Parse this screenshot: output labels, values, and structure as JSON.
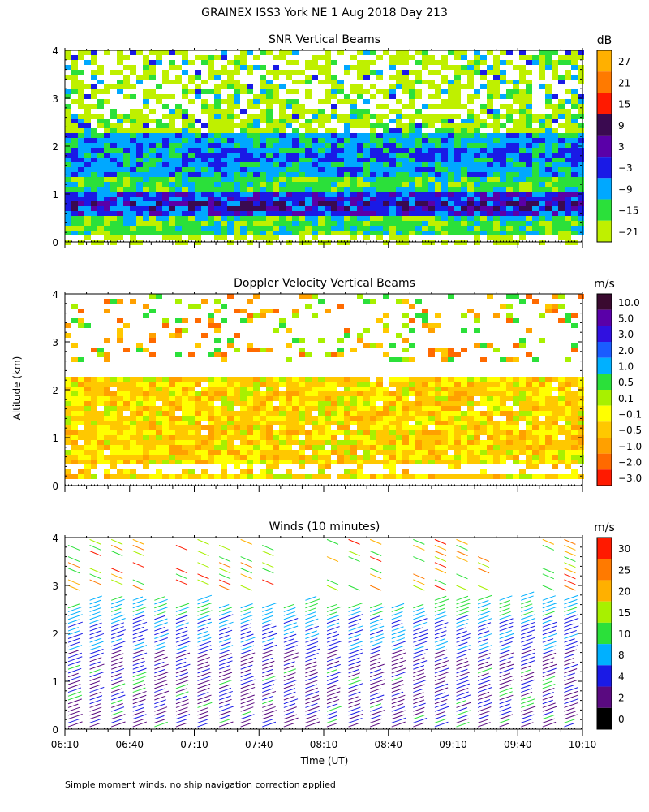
{
  "figure": {
    "title": "GRAINEX ISS3 York NE   1 Aug 2018 Day 213",
    "ylabel": "Altitude (km)",
    "xlabel": "Time (UT)",
    "footnote": "Simple moment winds, no ship navigation correction applied"
  },
  "chart_data": [
    {
      "type": "heatmap",
      "title": "SNR Vertical Beams",
      "units": "dB",
      "xlim": [
        "06:10",
        "10:10"
      ],
      "ylim": [
        0,
        4
      ],
      "yticks": [
        "0",
        "1",
        "2",
        "3",
        "4"
      ],
      "colorbar": {
        "labels": [
          "27",
          "21",
          "15",
          "9",
          "3",
          "−3",
          "−9",
          "−15",
          "−21"
        ],
        "colors": [
          "#ffb000",
          "#ff7a00",
          "#ff1a00",
          "#3a0a50",
          "#5a00a8",
          "#1a1ae6",
          "#00a8ff",
          "#2be03a",
          "#bff000"
        ]
      },
      "layers": [
        {
          "name": "upper",
          "altitude_km": [
            2.3,
            4.0
          ],
          "dominant": "-15 to -21"
        },
        {
          "name": "mid",
          "altitude_km": [
            1.4,
            2.3
          ],
          "dominant": "-3 to -9"
        },
        {
          "name": "lower",
          "altitude_km": [
            0.2,
            1.4
          ],
          "dominant": "-9 to 3"
        }
      ]
    },
    {
      "type": "heatmap",
      "title": "Doppler Velocity Vertical Beams",
      "units": "m/s",
      "xlim": [
        "06:10",
        "10:10"
      ],
      "ylim": [
        0,
        4
      ],
      "yticks": [
        "0",
        "1",
        "2",
        "3",
        "4"
      ],
      "colorbar": {
        "labels": [
          "10.0",
          "5.0",
          "3.0",
          "2.0",
          "1.0",
          "0.5",
          "0.1",
          "−0.1",
          "−0.5",
          "−1.0",
          "−2.0",
          "−3.0"
        ],
        "colors": [
          "#3a0a30",
          "#5a00a8",
          "#3010e0",
          "#1a5cff",
          "#00b0ff",
          "#2be03a",
          "#a8f000",
          "#ffff00",
          "#ffc800",
          "#ffa000",
          "#ff6a00",
          "#ff1a00"
        ]
      },
      "layers": [
        {
          "name": "upper",
          "altitude_km": [
            2.6,
            4.0
          ],
          "dominant": "-0.5 to -2.0"
        },
        {
          "name": "lower",
          "altitude_km": [
            0.2,
            2.3
          ],
          "dominant": "-0.1 to -1.0"
        }
      ]
    },
    {
      "type": "scatter",
      "title": "Winds (10 minutes)",
      "units": "m/s",
      "xlim": [
        "06:10",
        "10:10"
      ],
      "ylim": [
        0,
        4
      ],
      "yticks": [
        "0",
        "1",
        "2",
        "3",
        "4"
      ],
      "xticks": [
        "06:10",
        "06:40",
        "07:10",
        "07:40",
        "08:10",
        "08:40",
        "09:10",
        "09:40",
        "10:10"
      ],
      "colorbar": {
        "labels": [
          "30",
          "25",
          "20",
          "15",
          "10",
          "8",
          "4",
          "2",
          "0"
        ],
        "colors": [
          "#ff1a00",
          "#ff7a00",
          "#ffb000",
          "#a8f000",
          "#2be03a",
          "#00b0ff",
          "#1a1ae6",
          "#5a0a80",
          "#000000"
        ]
      },
      "profile_times": [
        "06:10",
        "06:20",
        "06:30",
        "06:40",
        "06:50",
        "07:00",
        "07:10",
        "07:20",
        "07:30",
        "07:40",
        "07:50",
        "08:00",
        "08:10",
        "08:20",
        "08:30",
        "08:40",
        "08:50",
        "09:00",
        "09:10",
        "09:20",
        "09:30",
        "09:40",
        "09:50",
        "10:00"
      ],
      "profile_top_km": [
        2.6,
        2.7,
        2.7,
        2.7,
        2.7,
        2.6,
        2.7,
        2.6,
        2.6,
        2.6,
        2.6,
        2.7,
        2.6,
        2.6,
        2.6,
        2.6,
        2.6,
        2.7,
        2.7,
        2.7,
        2.7,
        2.8,
        2.7,
        2.7
      ]
    }
  ]
}
